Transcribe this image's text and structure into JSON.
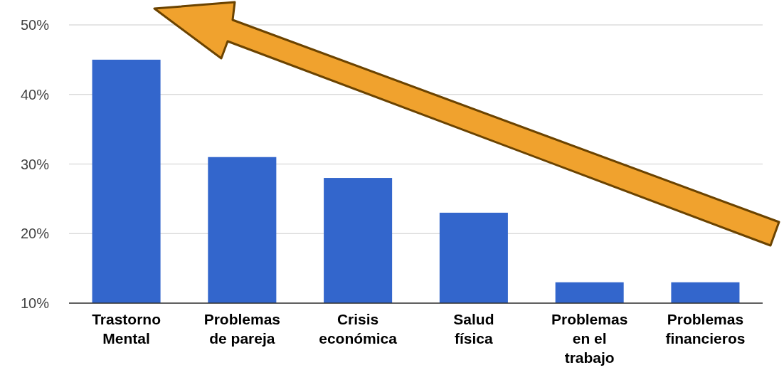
{
  "chart_data": {
    "type": "bar",
    "categories": [
      "Trastorno Mental",
      "Problemas de pareja",
      "Crisis económica",
      "Salud física",
      "Problemas en el trabajo",
      "Problemas financieros"
    ],
    "values": [
      45,
      31,
      28,
      23,
      13,
      13
    ],
    "color": "#3366cc",
    "ylim": [
      10,
      50
    ],
    "yticks": [
      {
        "value": 10,
        "label": "10%"
      },
      {
        "value": 20,
        "label": "20%"
      },
      {
        "value": 30,
        "label": "30%"
      },
      {
        "value": 40,
        "label": "40%"
      },
      {
        "value": 50,
        "label": "50%"
      }
    ],
    "grid": "y"
  }
}
